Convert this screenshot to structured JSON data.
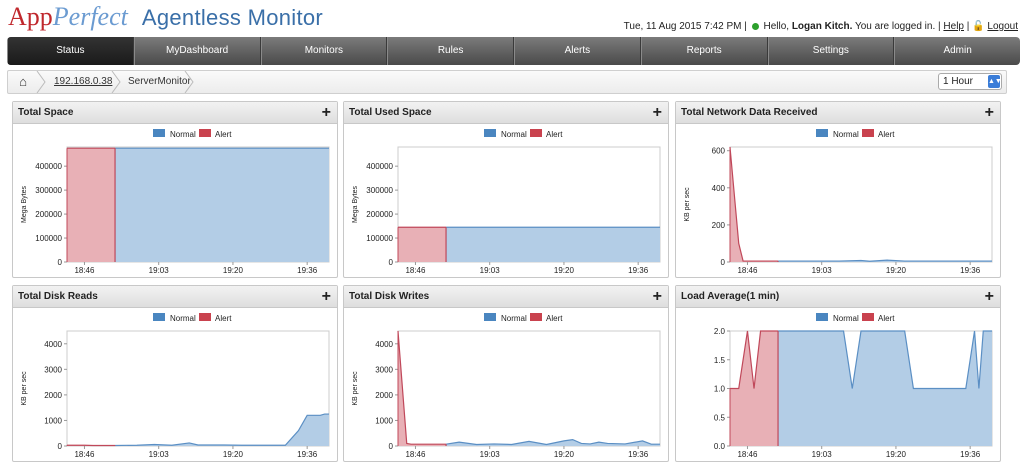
{
  "app": {
    "logo_app": "App",
    "logo_perfect": "Perfect",
    "logo_sub": "Agentless Monitor"
  },
  "userbar": {
    "datetime": "Tue, 11 Aug 2015 7:42 PM",
    "hello": "Hello, ",
    "user": "Logan Kitch.",
    "logged": " You are logged in.",
    "help": "Help",
    "logout": "Logout"
  },
  "nav": {
    "tabs": [
      "Status",
      "MyDashboard",
      "Monitors",
      "Rules",
      "Alerts",
      "Reports",
      "Settings",
      "Admin"
    ],
    "active": 0
  },
  "breadcrumb": {
    "ip": "192.168.0.38",
    "page": "ServerMonitor"
  },
  "range": {
    "selected": "1 Hour"
  },
  "colors": {
    "normal_fill": "#b3cde6",
    "normal_line": "#5b8fc4",
    "alert_fill": "#e8b0b6",
    "alert_line": "#c0485a",
    "legend_normal": "#4a86c0",
    "legend_alert": "#c9424e"
  },
  "legend": {
    "normal": "Normal",
    "alert": "Alert"
  },
  "chart_data": [
    {
      "type": "area",
      "title": "Total Space",
      "ylabel": "Mega Bytes",
      "ylim": [
        0,
        480000
      ],
      "yticks": [
        0,
        100000,
        200000,
        300000,
        400000
      ],
      "yticklabels": [
        "0",
        "100000",
        "200000",
        "300000",
        "400000"
      ],
      "xlim": [
        0,
        60
      ],
      "xticks": [
        4,
        21,
        38,
        55
      ],
      "xticklabels": [
        "18:46",
        "19:03",
        "19:20",
        "19:36"
      ],
      "alert": [
        [
          0,
          475000
        ],
        [
          11,
          475000
        ]
      ],
      "normal": [
        [
          11,
          475000
        ],
        [
          60,
          475000
        ]
      ]
    },
    {
      "type": "area",
      "title": "Total Used Space",
      "ylabel": "Mega Bytes",
      "ylim": [
        0,
        480000
      ],
      "yticks": [
        0,
        100000,
        200000,
        300000,
        400000
      ],
      "yticklabels": [
        "0",
        "100000",
        "200000",
        "300000",
        "400000"
      ],
      "xlim": [
        0,
        60
      ],
      "xticks": [
        4,
        21,
        38,
        55
      ],
      "xticklabels": [
        "18:46",
        "19:03",
        "19:20",
        "19:36"
      ],
      "alert": [
        [
          0,
          145000
        ],
        [
          11,
          145000
        ]
      ],
      "normal": [
        [
          11,
          145000
        ],
        [
          60,
          145000
        ]
      ]
    },
    {
      "type": "area",
      "title": "Total Network Data Received",
      "ylabel": "KB per sec",
      "ylim": [
        0,
        620
      ],
      "yticks": [
        0,
        200,
        400,
        600
      ],
      "yticklabels": [
        "0",
        "200",
        "400",
        "600"
      ],
      "xlim": [
        0,
        60
      ],
      "xticks": [
        4,
        21,
        38,
        55
      ],
      "xticklabels": [
        "18:46",
        "19:03",
        "19:20",
        "19:36"
      ],
      "alert": [
        [
          0,
          620
        ],
        [
          2,
          100
        ],
        [
          3,
          5
        ],
        [
          11,
          5
        ]
      ],
      "normal": [
        [
          11,
          5
        ],
        [
          25,
          5
        ],
        [
          30,
          8
        ],
        [
          32,
          4
        ],
        [
          36,
          10
        ],
        [
          40,
          5
        ],
        [
          60,
          5
        ]
      ]
    },
    {
      "type": "area",
      "title": "Total Disk Reads",
      "ylabel": "KB per sec",
      "ylim": [
        0,
        4500
      ],
      "yticks": [
        0,
        1000,
        2000,
        3000,
        4000
      ],
      "yticklabels": [
        "0",
        "1000",
        "2000",
        "3000",
        "4000"
      ],
      "xlim": [
        0,
        60
      ],
      "xticks": [
        4,
        21,
        38,
        55
      ],
      "xticklabels": [
        "18:46",
        "19:03",
        "19:20",
        "19:36"
      ],
      "alert": [
        [
          0,
          30
        ],
        [
          4,
          30
        ],
        [
          6,
          20
        ],
        [
          11,
          20
        ]
      ],
      "normal": [
        [
          11,
          20
        ],
        [
          16,
          30
        ],
        [
          20,
          60
        ],
        [
          24,
          30
        ],
        [
          28,
          120
        ],
        [
          30,
          40
        ],
        [
          36,
          40
        ],
        [
          40,
          30
        ],
        [
          50,
          30
        ],
        [
          53,
          600
        ],
        [
          55,
          1200
        ],
        [
          58,
          1200
        ],
        [
          59,
          1250
        ],
        [
          60,
          1250
        ]
      ]
    },
    {
      "type": "area",
      "title": "Total Disk Writes",
      "ylabel": "KB per sec",
      "ylim": [
        0,
        4500
      ],
      "yticks": [
        0,
        1000,
        2000,
        3000,
        4000
      ],
      "yticklabels": [
        "0",
        "1000",
        "2000",
        "3000",
        "4000"
      ],
      "xlim": [
        0,
        60
      ],
      "xticks": [
        4,
        21,
        38,
        55
      ],
      "xticklabels": [
        "18:46",
        "19:03",
        "19:20",
        "19:36"
      ],
      "alert": [
        [
          0,
          4500
        ],
        [
          2,
          100
        ],
        [
          3,
          70
        ],
        [
          11,
          70
        ]
      ],
      "normal": [
        [
          11,
          70
        ],
        [
          14,
          150
        ],
        [
          18,
          60
        ],
        [
          22,
          80
        ],
        [
          26,
          60
        ],
        [
          30,
          180
        ],
        [
          34,
          60
        ],
        [
          38,
          200
        ],
        [
          40,
          250
        ],
        [
          42,
          100
        ],
        [
          44,
          80
        ],
        [
          46,
          150
        ],
        [
          48,
          100
        ],
        [
          52,
          80
        ],
        [
          56,
          200
        ],
        [
          58,
          70
        ],
        [
          60,
          70
        ]
      ]
    },
    {
      "type": "area",
      "title": "Load Average(1 min)",
      "ylabel": "",
      "ylim": [
        0,
        2
      ],
      "yticks": [
        0,
        0.5,
        1,
        1.5,
        2
      ],
      "yticklabels": [
        "0.0",
        "0.5",
        "1.0",
        "1.5",
        "2.0"
      ],
      "xlim": [
        0,
        60
      ],
      "xticks": [
        4,
        21,
        38,
        55
      ],
      "xticklabels": [
        "18:46",
        "19:03",
        "19:20",
        "19:36"
      ],
      "alert": [
        [
          0,
          1
        ],
        [
          2,
          1
        ],
        [
          4,
          2
        ],
        [
          5.5,
          1
        ],
        [
          7,
          2
        ],
        [
          11,
          2
        ]
      ],
      "normal": [
        [
          11,
          2
        ],
        [
          26,
          2
        ],
        [
          28,
          1
        ],
        [
          30,
          2
        ],
        [
          40,
          2
        ],
        [
          42,
          1
        ],
        [
          54,
          1
        ],
        [
          56,
          2
        ],
        [
          57,
          1
        ],
        [
          58,
          2
        ],
        [
          60,
          2
        ]
      ]
    }
  ]
}
